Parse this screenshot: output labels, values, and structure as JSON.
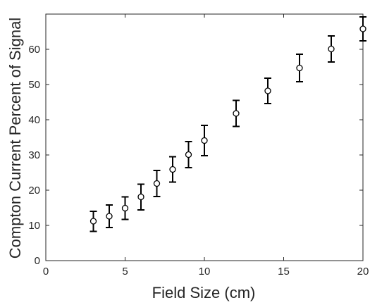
{
  "chart_data": {
    "type": "scatter",
    "title": "",
    "xlabel": "Field Size (cm)",
    "ylabel": "Compton Current Percent of Signal",
    "xlim": [
      0,
      20
    ],
    "ylim": [
      0,
      70
    ],
    "xticks": [
      0,
      5,
      10,
      15,
      20
    ],
    "yticks": [
      0,
      10,
      20,
      30,
      40,
      50,
      60
    ],
    "grid": false,
    "legend": "none",
    "marker": "open-circle",
    "error_bars": true,
    "color": "#000000",
    "x": [
      3,
      4,
      5,
      6,
      7,
      8,
      9,
      10,
      12,
      14,
      16,
      18,
      20
    ],
    "y": [
      11.2,
      12.6,
      14.9,
      18.1,
      21.9,
      25.9,
      30.1,
      34.1,
      41.8,
      48.2,
      54.7,
      60.1,
      65.8
    ],
    "y_err_low": [
      8.3,
      9.4,
      11.7,
      14.4,
      18.2,
      22.3,
      26.4,
      29.8,
      38.1,
      44.6,
      50.8,
      56.4,
      62.4
    ],
    "y_err_high": [
      14.0,
      15.8,
      18.1,
      21.7,
      25.6,
      29.5,
      33.8,
      38.4,
      45.5,
      51.8,
      58.6,
      63.8,
      69.2
    ]
  }
}
